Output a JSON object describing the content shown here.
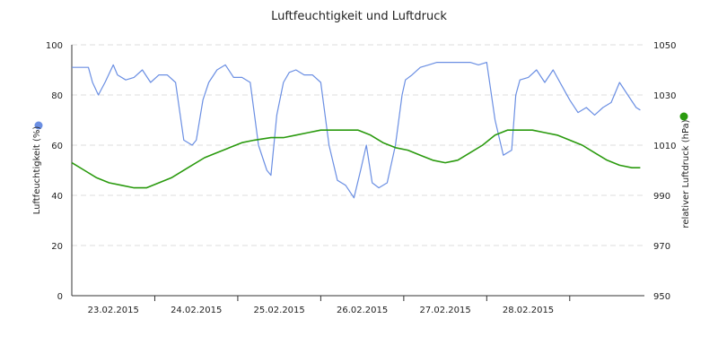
{
  "chart_data": {
    "type": "line",
    "title": "Luftfeuchtigkeit und Luftdruck",
    "xlabel": "",
    "ylabel_left": "Luftfeuchtigkeit (%)",
    "ylabel_right": "relativer Luftdruck (hPa)",
    "ylim_left": [
      0,
      100
    ],
    "ylim_right": [
      950,
      1050
    ],
    "yticks_left": [
      "0",
      "20",
      "40",
      "60",
      "80",
      "100"
    ],
    "yticks_right": [
      "950",
      "970",
      "990",
      "1010",
      "1030",
      "1050"
    ],
    "xlim": [
      0,
      6.9
    ],
    "x_unit": "days starting 22.02.2015 12:00",
    "xticks": [
      {
        "pos": 0.5,
        "label": "23.02.2015"
      },
      {
        "pos": 1.5,
        "label": "24.02.2015"
      },
      {
        "pos": 2.5,
        "label": "25.02.2015"
      },
      {
        "pos": 3.5,
        "label": "26.02.2015"
      },
      {
        "pos": 4.5,
        "label": "27.02.2015"
      },
      {
        "pos": 5.5,
        "label": "28.02.2015"
      }
    ],
    "grid": true,
    "legend": "none",
    "series": [
      {
        "name": "Luftfeuchtigkeit (%)",
        "axis": "left",
        "color": "#6b8fe3",
        "x": [
          0.0,
          0.1,
          0.2,
          0.25,
          0.32,
          0.4,
          0.5,
          0.55,
          0.65,
          0.75,
          0.85,
          0.95,
          1.05,
          1.15,
          1.25,
          1.35,
          1.45,
          1.5,
          1.58,
          1.65,
          1.75,
          1.85,
          1.95,
          2.05,
          2.15,
          2.25,
          2.35,
          2.4,
          2.47,
          2.55,
          2.62,
          2.7,
          2.8,
          2.9,
          3.0,
          3.1,
          3.2,
          3.3,
          3.4,
          3.48,
          3.55,
          3.62,
          3.7,
          3.8,
          3.9,
          3.98,
          4.02,
          4.1,
          4.2,
          4.3,
          4.4,
          4.5,
          4.6,
          4.7,
          4.8,
          4.9,
          5.0,
          5.1,
          5.2,
          5.3,
          5.35,
          5.4,
          5.5,
          5.6,
          5.7,
          5.8,
          5.9,
          6.0,
          6.1,
          6.2,
          6.3,
          6.4,
          6.5,
          6.6,
          6.7,
          6.8,
          6.85
        ],
        "y": [
          91,
          91,
          91,
          85,
          80,
          85,
          92,
          88,
          86,
          87,
          90,
          85,
          88,
          88,
          85,
          62,
          60,
          62,
          78,
          85,
          90,
          92,
          87,
          87,
          85,
          60,
          50,
          48,
          72,
          85,
          89,
          90,
          88,
          88,
          85,
          60,
          46,
          44,
          39,
          50,
          60,
          45,
          43,
          45,
          60,
          80,
          86,
          88,
          91,
          92,
          93,
          93,
          93,
          93,
          93,
          92,
          93,
          70,
          56,
          58,
          80,
          86,
          87,
          90,
          85,
          90,
          84,
          78,
          73,
          75,
          72,
          75,
          77,
          85,
          80,
          75,
          74
        ]
      },
      {
        "name": "relativer Luftdruck (hPa)",
        "axis": "right",
        "color": "#2a9a0e",
        "x": [
          0.0,
          0.15,
          0.3,
          0.45,
          0.6,
          0.75,
          0.9,
          1.05,
          1.2,
          1.4,
          1.6,
          1.75,
          1.9,
          2.05,
          2.2,
          2.4,
          2.55,
          2.7,
          2.85,
          3.0,
          3.15,
          3.3,
          3.45,
          3.6,
          3.75,
          3.9,
          4.05,
          4.2,
          4.35,
          4.5,
          4.65,
          4.8,
          4.95,
          5.1,
          5.25,
          5.4,
          5.55,
          5.7,
          5.85,
          6.0,
          6.15,
          6.3,
          6.45,
          6.6,
          6.75,
          6.85
        ],
        "y": [
          1003,
          1000,
          997,
          995,
          994,
          993,
          993,
          995,
          997,
          1001,
          1005,
          1007,
          1009,
          1011,
          1012,
          1013,
          1013,
          1014,
          1015,
          1016,
          1016,
          1016,
          1016,
          1014,
          1011,
          1009,
          1008,
          1006,
          1004,
          1003,
          1004,
          1007,
          1010,
          1014,
          1016,
          1016,
          1016,
          1015,
          1014,
          1012,
          1010,
          1007,
          1004,
          1002,
          1001,
          1001
        ]
      }
    ]
  }
}
